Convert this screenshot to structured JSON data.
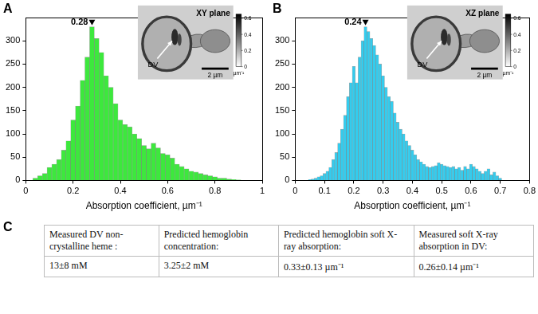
{
  "chart_data": [
    {
      "type": "histogram",
      "panel": "A",
      "x_label": "Absorption coefficient, µm⁻¹",
      "color": "#3de83d",
      "grid": false,
      "bins": [
        0.03,
        0.05,
        0.07,
        0.09,
        0.11,
        0.13,
        0.15,
        0.17,
        0.19,
        0.21,
        0.23,
        0.25,
        0.27,
        0.29,
        0.31,
        0.33,
        0.35,
        0.37,
        0.39,
        0.41,
        0.43,
        0.45,
        0.47,
        0.49,
        0.51,
        0.53,
        0.55,
        0.57,
        0.59,
        0.61,
        0.63,
        0.65,
        0.67,
        0.69,
        0.71,
        0.73,
        0.75,
        0.77,
        0.79,
        0.81,
        0.83,
        0.85,
        0.87,
        0.89,
        0.91
      ],
      "values": [
        5,
        10,
        15,
        28,
        35,
        45,
        65,
        85,
        130,
        160,
        215,
        265,
        330,
        305,
        275,
        225,
        200,
        165,
        130,
        120,
        115,
        100,
        90,
        75,
        68,
        80,
        70,
        58,
        55,
        48,
        35,
        30,
        25,
        20,
        18,
        15,
        12,
        10,
        8,
        5,
        5,
        3,
        2,
        1
      ],
      "xlim": [
        0,
        1
      ],
      "xticks": [
        0,
        0.2,
        0.4,
        0.6,
        0.8,
        1
      ],
      "ylim": [
        0,
        350
      ],
      "yticks": [
        0,
        50,
        100,
        150,
        200,
        250,
        300
      ],
      "annotations": [
        {
          "x": 0.28,
          "y": 330,
          "label": "0.28"
        }
      ],
      "inset": {
        "title": "XY plane",
        "arrow_label": "DV",
        "scale_bar": "2 µm",
        "colorbar": {
          "range": [
            0,
            0.65
          ],
          "ticks": [
            0,
            0.2,
            0.4,
            0.6
          ],
          "label": "µm⁻¹"
        }
      }
    },
    {
      "type": "histogram",
      "panel": "B",
      "x_label": "Absorption coefficient, µm⁻¹",
      "color": "#33ccee",
      "grid": false,
      "bins": [
        0.045,
        0.055,
        0.065,
        0.075,
        0.085,
        0.095,
        0.105,
        0.115,
        0.125,
        0.135,
        0.145,
        0.155,
        0.165,
        0.175,
        0.185,
        0.195,
        0.205,
        0.215,
        0.225,
        0.235,
        0.245,
        0.255,
        0.265,
        0.275,
        0.285,
        0.295,
        0.305,
        0.315,
        0.325,
        0.335,
        0.345,
        0.355,
        0.365,
        0.375,
        0.385,
        0.395,
        0.405,
        0.415,
        0.425,
        0.435,
        0.445,
        0.455,
        0.465,
        0.475,
        0.485,
        0.495,
        0.505,
        0.515,
        0.525,
        0.535,
        0.545,
        0.555,
        0.565,
        0.575,
        0.585,
        0.595,
        0.605,
        0.615,
        0.625,
        0.635,
        0.645,
        0.655,
        0.665,
        0.675,
        0.685,
        0.695,
        0.705
      ],
      "values": [
        2,
        3,
        5,
        8,
        10,
        15,
        20,
        28,
        45,
        60,
        80,
        110,
        140,
        180,
        210,
        245,
        210,
        265,
        300,
        330,
        320,
        305,
        290,
        270,
        250,
        225,
        200,
        180,
        170,
        145,
        125,
        110,
        100,
        85,
        75,
        65,
        55,
        45,
        40,
        35,
        30,
        28,
        30,
        32,
        38,
        35,
        32,
        30,
        28,
        30,
        25,
        28,
        22,
        30,
        25,
        35,
        30,
        25,
        20,
        15,
        20,
        25,
        12,
        18,
        10,
        5
      ],
      "xlim": [
        0,
        0.8
      ],
      "xticks": [
        0,
        0.1,
        0.2,
        0.3,
        0.4,
        0.5,
        0.6,
        0.7,
        0.8
      ],
      "ylim": [
        0,
        350
      ],
      "yticks": [
        0,
        50,
        100,
        150,
        200,
        250,
        300
      ],
      "annotations": [
        {
          "x": 0.24,
          "y": 330,
          "label": "0.24"
        }
      ],
      "inset": {
        "title": "XZ plane",
        "arrow_label": "DV",
        "scale_bar": "2 µm",
        "colorbar": {
          "range": [
            0,
            0.65
          ],
          "ticks": [
            0,
            0.2,
            0.4,
            0.6
          ],
          "label": "µm⁻¹"
        }
      }
    }
  ],
  "table": {
    "panel": "C",
    "rows": [
      [
        "Measured DV non-crystalline heme :",
        "Predicted hemoglobin concentration:",
        "Predicted hemoglobin soft X-ray absorption:",
        "Measured soft X-ray absorption in DV:"
      ],
      [
        "13±8 mM",
        "3.25±2 mM",
        "0.33±0.13 µm⁻¹",
        "0.26±0.14 µm⁻¹"
      ]
    ]
  }
}
